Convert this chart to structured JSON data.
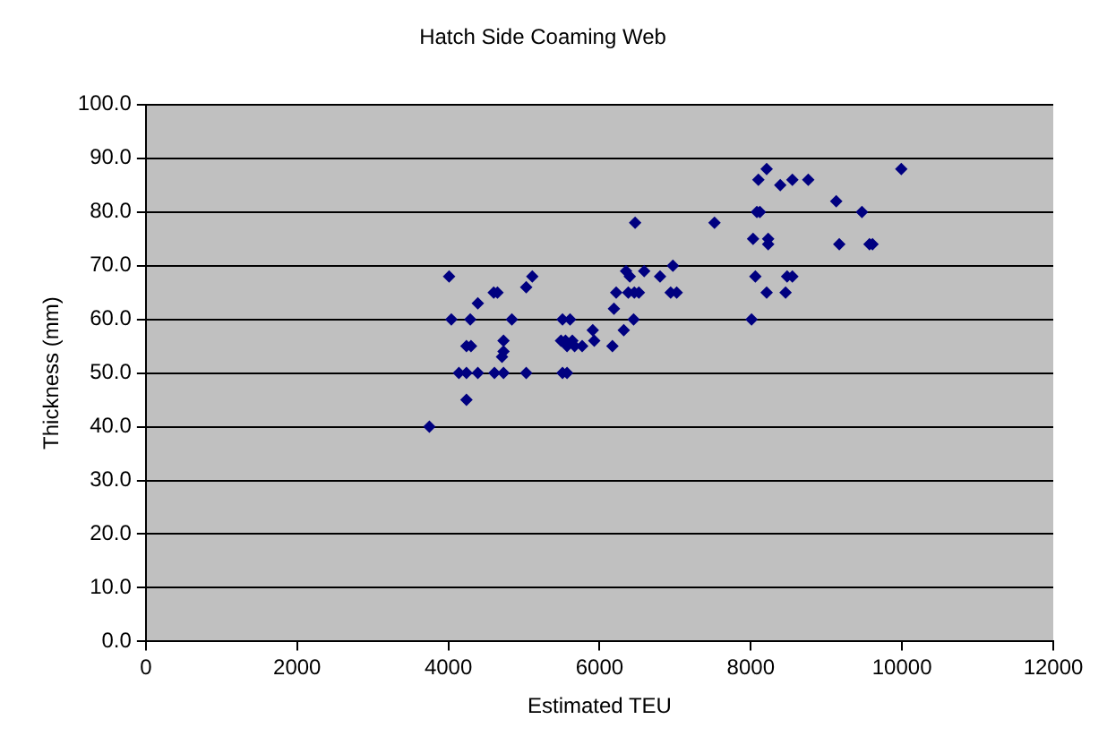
{
  "chart_data": {
    "type": "scatter",
    "title": "Hatch Side Coaming Web",
    "xlabel": "Estimated TEU",
    "ylabel": "Thickness (mm)",
    "xlim": [
      0,
      12000
    ],
    "xticks": [
      0,
      2000,
      4000,
      6000,
      8000,
      10000,
      12000
    ],
    "ylim": [
      0,
      100
    ],
    "yticks": [
      {
        "value": 0,
        "label": "0.0"
      },
      {
        "value": 10,
        "label": "10.0"
      },
      {
        "value": 20,
        "label": "20.0"
      },
      {
        "value": 30,
        "label": "30.0"
      },
      {
        "value": 40,
        "label": "40.0"
      },
      {
        "value": 50,
        "label": "50.0"
      },
      {
        "value": 60,
        "label": "60.0"
      },
      {
        "value": 70,
        "label": "70.0"
      },
      {
        "value": 80,
        "label": "80.0"
      },
      {
        "value": 90,
        "label": "90.0"
      },
      {
        "value": 100,
        "label": "100.0"
      }
    ],
    "grid": "y",
    "legend": false,
    "marker": "diamond",
    "series": [
      {
        "color": "#000080",
        "x": [
          3750,
          4010,
          4040,
          4140,
          4240,
          4240,
          4240,
          4300,
          4290,
          4390,
          4390,
          4600,
          4650,
          4610,
          4730,
          4730,
          4710,
          4730,
          4840,
          5030,
          5030,
          5110,
          5490,
          5510,
          5510,
          5570,
          5550,
          5570,
          5610,
          5640,
          5670,
          5770,
          5910,
          5930,
          6170,
          6190,
          6220,
          6320,
          6350,
          6380,
          6400,
          6450,
          6460,
          6470,
          6520,
          6590,
          6800,
          6970,
          6940,
          7020,
          7520,
          8010,
          8030,
          8060,
          8080,
          8120,
          8100,
          8210,
          8210,
          8230,
          8230,
          8390,
          8460,
          8480,
          8550,
          8550,
          8760,
          9130,
          9170,
          9470,
          9570,
          9610,
          9990
        ],
        "values": [
          40,
          68,
          60,
          50,
          50,
          45,
          55,
          55,
          60,
          63,
          50,
          65,
          65,
          50,
          50,
          56,
          53,
          54,
          60,
          50,
          66,
          68,
          56,
          60,
          50,
          50,
          56,
          55,
          60,
          56,
          55,
          55,
          58,
          56,
          55,
          62,
          65,
          58,
          69,
          65,
          68,
          60,
          65,
          78,
          65,
          69,
          68,
          70,
          65,
          65,
          78,
          60,
          75,
          68,
          80,
          80,
          86,
          88,
          65,
          75,
          74,
          85,
          65,
          68,
          68,
          86,
          86,
          82,
          74,
          80,
          74,
          74,
          88
        ]
      }
    ]
  }
}
